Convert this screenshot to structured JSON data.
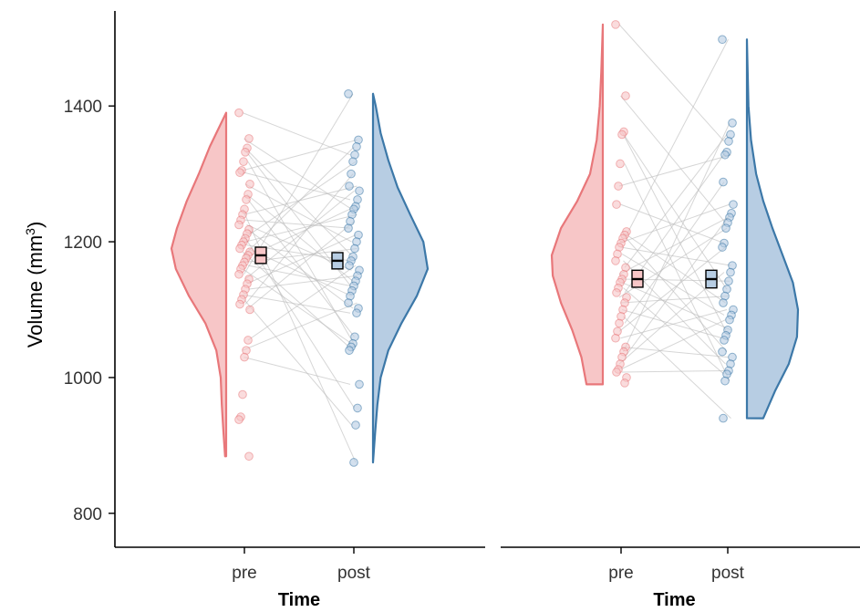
{
  "chart_data": {
    "type": "raincloud",
    "ylabel": "Volume (mm",
    "ylabel_superscript": "3",
    "ylabel_suffix": ")",
    "ylim": [
      750,
      1540
    ],
    "yticks": [
      800,
      1000,
      1200,
      1400
    ],
    "ytick_labels": [
      "800",
      "1000",
      "1200",
      "1400"
    ],
    "grid": false,
    "colors": {
      "pre": "#E8777A",
      "pre_fill": "#F7C6C7",
      "post": "#3C78A8",
      "post_fill": "#B7CDE3",
      "line": "#bbbbbb",
      "axis": "#000000"
    },
    "panels": [
      {
        "xlabel": "Time",
        "categories": [
          "pre",
          "post"
        ],
        "series": [
          {
            "name": "pre",
            "mean": 1180,
            "se": [
              1168,
              1192
            ],
            "values": [
              1390,
              1352,
              1338,
              1332,
              1318,
              1305,
              1302,
              1285,
              1270,
              1262,
              1248,
              1240,
              1232,
              1225,
              1218,
              1212,
              1205,
              1200,
              1195,
              1190,
              1185,
              1180,
              1176,
              1170,
              1165,
              1160,
              1152,
              1145,
              1138,
              1130,
              1122,
              1115,
              1108,
              1100,
              1055,
              1040,
              1030,
              975,
              942,
              938,
              884
            ],
            "density": [
              [
                884,
                0.02
              ],
              [
                920,
                0.05
              ],
              [
                960,
                0.08
              ],
              [
                1000,
                0.1
              ],
              [
                1040,
                0.18
              ],
              [
                1080,
                0.38
              ],
              [
                1120,
                0.68
              ],
              [
                1160,
                0.92
              ],
              [
                1190,
                1.0
              ],
              [
                1220,
                0.9
              ],
              [
                1260,
                0.72
              ],
              [
                1300,
                0.5
              ],
              [
                1340,
                0.3
              ],
              [
                1370,
                0.12
              ],
              [
                1390,
                0.0
              ]
            ]
          },
          {
            "name": "post",
            "mean": 1172,
            "se": [
              1160,
              1184
            ],
            "values": [
              1418,
              1350,
              1340,
              1328,
              1318,
              1300,
              1282,
              1275,
              1262,
              1252,
              1248,
              1240,
              1230,
              1220,
              1210,
              1200,
              1190,
              1178,
              1172,
              1165,
              1158,
              1150,
              1142,
              1135,
              1128,
              1120,
              1110,
              1102,
              1095,
              1060,
              1050,
              1045,
              1040,
              990,
              955,
              930,
              875
            ],
            "density": [
              [
                875,
                0.0
              ],
              [
                920,
                0.04
              ],
              [
                960,
                0.08
              ],
              [
                1000,
                0.14
              ],
              [
                1040,
                0.28
              ],
              [
                1080,
                0.52
              ],
              [
                1120,
                0.8
              ],
              [
                1160,
                1.0
              ],
              [
                1200,
                0.92
              ],
              [
                1240,
                0.68
              ],
              [
                1280,
                0.45
              ],
              [
                1320,
                0.28
              ],
              [
                1360,
                0.14
              ],
              [
                1400,
                0.05
              ],
              [
                1418,
                0.0
              ]
            ]
          }
        ]
      },
      {
        "xlabel": "Time",
        "categories": [
          "pre",
          "post"
        ],
        "series": [
          {
            "name": "pre",
            "mean": 1145,
            "se": [
              1133,
              1158
            ],
            "values": [
              1520,
              1415,
              1362,
              1358,
              1315,
              1282,
              1255,
              1215,
              1210,
              1205,
              1198,
              1192,
              1182,
              1172,
              1162,
              1152,
              1145,
              1140,
              1132,
              1125,
              1118,
              1110,
              1100,
              1090,
              1080,
              1068,
              1058,
              1045,
              1038,
              1030,
              1020,
              1012,
              1008,
              1000,
              992
            ],
            "density": [
              [
                990,
                0.32
              ],
              [
                1030,
                0.42
              ],
              [
                1070,
                0.6
              ],
              [
                1110,
                0.82
              ],
              [
                1150,
                0.98
              ],
              [
                1180,
                1.0
              ],
              [
                1220,
                0.82
              ],
              [
                1260,
                0.5
              ],
              [
                1300,
                0.25
              ],
              [
                1350,
                0.12
              ],
              [
                1400,
                0.06
              ],
              [
                1450,
                0.03
              ],
              [
                1520,
                0.0
              ]
            ]
          },
          {
            "name": "post",
            "mean": 1145,
            "se": [
              1132,
              1158
            ],
            "values": [
              1498,
              1375,
              1358,
              1348,
              1332,
              1328,
              1288,
              1255,
              1242,
              1236,
              1228,
              1220,
              1198,
              1192,
              1165,
              1155,
              1142,
              1130,
              1120,
              1110,
              1100,
              1092,
              1085,
              1070,
              1062,
              1055,
              1038,
              1030,
              1020,
              1010,
              1005,
              995,
              940
            ],
            "density": [
              [
                940,
                0.32
              ],
              [
                980,
                0.55
              ],
              [
                1020,
                0.82
              ],
              [
                1060,
                0.98
              ],
              [
                1100,
                1.0
              ],
              [
                1140,
                0.9
              ],
              [
                1180,
                0.7
              ],
              [
                1220,
                0.5
              ],
              [
                1260,
                0.32
              ],
              [
                1300,
                0.18
              ],
              [
                1350,
                0.08
              ],
              [
                1400,
                0.03
              ],
              [
                1498,
                0.0
              ]
            ]
          }
        ]
      }
    ]
  }
}
